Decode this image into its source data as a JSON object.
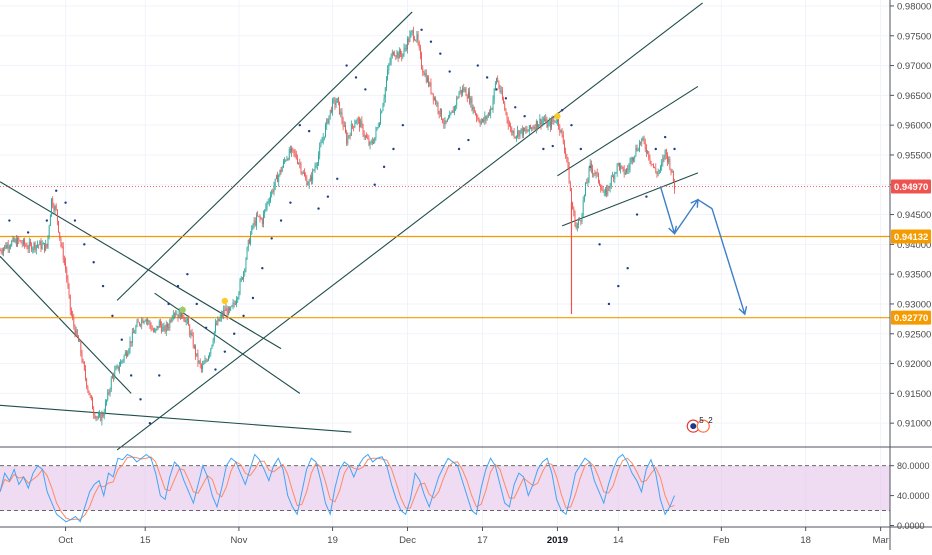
{
  "chart_data": {
    "type": "candlestick",
    "main_pane": {
      "y_axis": {
        "range": [
          0.906,
          0.981
        ],
        "ticks": [
          "0.98000",
          "0.97500",
          "0.97000",
          "0.96500",
          "0.96000",
          "0.95500",
          "0.95000",
          "0.94500",
          "0.94000",
          "0.93500",
          "0.93000",
          "0.92500",
          "0.92000",
          "0.91500",
          "0.91000"
        ]
      },
      "price_tags": [
        {
          "label": "0.94970",
          "value": 0.9497,
          "color": "#ef5350",
          "kind": "current-price"
        },
        {
          "label": "0.94132",
          "value": 0.94132,
          "color": "#f59b00",
          "kind": "horizontal-level"
        },
        {
          "label": "0.92770",
          "value": 0.9277,
          "color": "#f59b00",
          "kind": "horizontal-level"
        }
      ],
      "x_axis": {
        "range": [
          0,
          190
        ],
        "ticks": [
          {
            "label": "Oct",
            "x": 14,
            "bold": false
          },
          {
            "label": "15",
            "x": 31,
            "bold": false
          },
          {
            "label": "Nov",
            "x": 51,
            "bold": false
          },
          {
            "label": "19",
            "x": 71,
            "bold": false
          },
          {
            "label": "Dec",
            "x": 87,
            "bold": false
          },
          {
            "label": "17",
            "x": 103,
            "bold": false
          },
          {
            "label": "2019",
            "x": 119,
            "bold": true
          },
          {
            "label": "14",
            "x": 132,
            "bold": false
          },
          {
            "label": "Feb",
            "x": 154,
            "bold": false
          },
          {
            "label": "18",
            "x": 172,
            "bold": false
          },
          {
            "label": "Mar",
            "x": 188,
            "bold": false
          }
        ]
      },
      "price_path": [
        [
          0,
          0.939
        ],
        [
          2,
          0.9402
        ],
        [
          4,
          0.9405
        ],
        [
          6,
          0.9396
        ],
        [
          8,
          0.94
        ],
        [
          10,
          0.9395
        ],
        [
          11,
          0.9475
        ],
        [
          12,
          0.9455
        ],
        [
          13,
          0.94
        ],
        [
          14,
          0.936
        ],
        [
          15,
          0.929
        ],
        [
          16,
          0.9255
        ],
        [
          17,
          0.923
        ],
        [
          18,
          0.9185
        ],
        [
          19,
          0.915
        ],
        [
          20,
          0.912
        ],
        [
          21,
          0.9106
        ],
        [
          22,
          0.9115
        ],
        [
          23,
          0.9145
        ],
        [
          24,
          0.918
        ],
        [
          25,
          0.919
        ],
        [
          26,
          0.9205
        ],
        [
          27,
          0.922
        ],
        [
          28,
          0.924
        ],
        [
          29,
          0.926
        ],
        [
          30,
          0.9272
        ],
        [
          31,
          0.9278
        ],
        [
          32,
          0.9265
        ],
        [
          33,
          0.925
        ],
        [
          34,
          0.9268
        ],
        [
          35,
          0.9255
        ],
        [
          36,
          0.9265
        ],
        [
          37,
          0.929
        ],
        [
          38,
          0.9282
        ],
        [
          39,
          0.9284
        ],
        [
          40,
          0.9268
        ],
        [
          41,
          0.924
        ],
        [
          42,
          0.921
        ],
        [
          43,
          0.919
        ],
        [
          44,
          0.9205
        ],
        [
          45,
          0.9228
        ],
        [
          46,
          0.9262
        ],
        [
          47,
          0.9275
        ],
        [
          48,
          0.929
        ],
        [
          49,
          0.9285
        ],
        [
          50,
          0.93
        ],
        [
          51,
          0.9325
        ],
        [
          52,
          0.9355
        ],
        [
          53,
          0.94
        ],
        [
          54,
          0.9432
        ],
        [
          55,
          0.9445
        ],
        [
          56,
          0.944
        ],
        [
          57,
          0.947
        ],
        [
          58,
          0.9488
        ],
        [
          59,
          0.9508
        ],
        [
          60,
          0.9525
        ],
        [
          61,
          0.9545
        ],
        [
          62,
          0.9555
        ],
        [
          63,
          0.955
        ],
        [
          64,
          0.9535
        ],
        [
          65,
          0.9512
        ],
        [
          66,
          0.9502
        ],
        [
          67,
          0.9525
        ],
        [
          68,
          0.955
        ],
        [
          69,
          0.958
        ],
        [
          70,
          0.961
        ],
        [
          71,
          0.9635
        ],
        [
          72,
          0.964
        ],
        [
          73,
          0.961
        ],
        [
          74,
          0.9575
        ],
        [
          75,
          0.9595
        ],
        [
          76,
          0.961
        ],
        [
          77,
          0.96
        ],
        [
          78,
          0.958
        ],
        [
          79,
          0.9565
        ],
        [
          80,
          0.958
        ],
        [
          81,
          0.961
        ],
        [
          82,
          0.965
        ],
        [
          83,
          0.97
        ],
        [
          84,
          0.9725
        ],
        [
          85,
          0.9718
        ],
        [
          86,
          0.972
        ],
        [
          87,
          0.974
        ],
        [
          88,
          0.9755
        ],
        [
          89,
          0.9745
        ],
        [
          90,
          0.97
        ],
        [
          91,
          0.968
        ],
        [
          92,
          0.966
        ],
        [
          93,
          0.964
        ],
        [
          94,
          0.962
        ],
        [
          95,
          0.96
        ],
        [
          96,
          0.961
        ],
        [
          97,
          0.963
        ],
        [
          98,
          0.9655
        ],
        [
          99,
          0.966
        ],
        [
          100,
          0.965
        ],
        [
          101,
          0.9628
        ],
        [
          102,
          0.9612
        ],
        [
          103,
          0.9605
        ],
        [
          104,
          0.9615
        ],
        [
          105,
          0.9632
        ],
        [
          106,
          0.968
        ],
        [
          107,
          0.965
        ],
        [
          108,
          0.962
        ],
        [
          109,
          0.9592
        ],
        [
          110,
          0.9585
        ],
        [
          111,
          0.959
        ],
        [
          112,
          0.9588
        ],
        [
          113,
          0.9592
        ],
        [
          114,
          0.96
        ],
        [
          115,
          0.9605
        ],
        [
          116,
          0.961
        ],
        [
          117,
          0.9598
        ],
        [
          118,
          0.9606
        ],
        [
          119,
          0.9612
        ],
        [
          120,
          0.958
        ],
        [
          121,
          0.9545
        ],
        [
          122,
          0.947
        ],
        [
          123,
          0.9428
        ],
        [
          124,
          0.9445
        ],
        [
          125,
          0.9495
        ],
        [
          126,
          0.953
        ],
        [
          127,
          0.952
        ],
        [
          128,
          0.9505
        ],
        [
          129,
          0.948
        ],
        [
          130,
          0.9498
        ],
        [
          131,
          0.9518
        ],
        [
          132,
          0.9534
        ],
        [
          133,
          0.952
        ],
        [
          134,
          0.9525
        ],
        [
          135,
          0.9548
        ],
        [
          136,
          0.9562
        ],
        [
          137,
          0.9575
        ],
        [
          138,
          0.956
        ],
        [
          139,
          0.954
        ],
        [
          140,
          0.952
        ],
        [
          141,
          0.9525
        ],
        [
          142,
          0.9555
        ],
        [
          143,
          0.9535
        ],
        [
          144,
          0.9497
        ]
      ],
      "sar_points": [
        [
          2,
          0.944
        ],
        [
          6,
          0.942
        ],
        [
          10,
          0.944
        ],
        [
          12,
          0.949
        ],
        [
          14,
          0.947
        ],
        [
          16,
          0.944
        ],
        [
          18,
          0.94
        ],
        [
          20,
          0.937
        ],
        [
          22,
          0.933
        ],
        [
          24,
          0.928
        ],
        [
          26,
          0.924
        ],
        [
          28,
          0.918
        ],
        [
          30,
          0.914
        ],
        [
          32,
          0.91
        ],
        [
          34,
          0.918
        ],
        [
          36,
          0.93
        ],
        [
          38,
          0.933
        ],
        [
          40,
          0.935
        ],
        [
          42,
          0.93
        ],
        [
          44,
          0.926
        ],
        [
          46,
          0.919
        ],
        [
          48,
          0.922
        ],
        [
          50,
          0.925
        ],
        [
          52,
          0.928
        ],
        [
          54,
          0.931
        ],
        [
          56,
          0.936
        ],
        [
          58,
          0.941
        ],
        [
          60,
          0.944
        ],
        [
          62,
          0.947
        ],
        [
          64,
          0.96
        ],
        [
          66,
          0.959
        ],
        [
          68,
          0.946
        ],
        [
          70,
          0.948
        ],
        [
          72,
          0.951
        ],
        [
          74,
          0.97
        ],
        [
          76,
          0.968
        ],
        [
          78,
          0.966
        ],
        [
          80,
          0.95
        ],
        [
          82,
          0.953
        ],
        [
          84,
          0.956
        ],
        [
          86,
          0.96
        ],
        [
          90,
          0.976
        ],
        [
          92,
          0.974
        ],
        [
          94,
          0.972
        ],
        [
          96,
          0.969
        ],
        [
          98,
          0.956
        ],
        [
          100,
          0.9575
        ],
        [
          102,
          0.97
        ],
        [
          104,
          0.968
        ],
        [
          106,
          0.966
        ],
        [
          108,
          0.9645
        ],
        [
          110,
          0.963
        ],
        [
          112,
          0.9615
        ],
        [
          116,
          0.956
        ],
        [
          118,
          0.9565
        ],
        [
          120,
          0.9625
        ],
        [
          122,
          0.96
        ],
        [
          124,
          0.956
        ],
        [
          126,
          0.953
        ],
        [
          128,
          0.94
        ],
        [
          130,
          0.93
        ],
        [
          132,
          0.933
        ],
        [
          134,
          0.936
        ],
        [
          136,
          0.945
        ],
        [
          138,
          0.948
        ],
        [
          140,
          0.956
        ],
        [
          142,
          0.958
        ],
        [
          144,
          0.956
        ]
      ],
      "spike": {
        "x": 122,
        "low": 0.9283
      },
      "trendlines": [
        {
          "from": [
            0,
            0.9505
          ],
          "to": [
            60,
            0.9225
          ]
        },
        {
          "from": [
            0,
            0.938
          ],
          "to": [
            28,
            0.915
          ]
        },
        {
          "from": [
            0,
            0.913
          ],
          "to": [
            75,
            0.9085
          ]
        },
        {
          "from": [
            25,
            0.9055
          ],
          "to": [
            150,
            0.9805
          ]
        },
        {
          "from": [
            25,
            0.9306
          ],
          "to": [
            88,
            0.979
          ]
        },
        {
          "from": [
            33,
            0.9318
          ],
          "to": [
            64,
            0.915
          ]
        },
        {
          "from": [
            119,
            0.9515
          ],
          "to": [
            149,
            0.9665
          ]
        },
        {
          "from": [
            120,
            0.9431
          ],
          "to": [
            149,
            0.952
          ]
        }
      ],
      "projection": [
        [
          141,
          0.9497
        ],
        [
          144,
          0.9418
        ],
        [
          149,
          0.9475
        ],
        [
          152,
          0.946
        ],
        [
          159,
          0.9283
        ]
      ],
      "markers": [
        {
          "x": 39,
          "value": 0.929,
          "color": "#9ccc65"
        },
        {
          "x": 48,
          "value": 0.9305,
          "color": "#ffca28"
        },
        {
          "x": 119,
          "value": 0.9615,
          "color": "#ffca28"
        }
      ],
      "event_badge": {
        "x": 148,
        "value": 0.9095,
        "count_a": "5",
        "count_b": "2"
      }
    },
    "indicator_pane": {
      "type": "stochastic-rsi",
      "y_axis": {
        "range": [
          -2,
          105
        ],
        "ticks": [
          "80.0000",
          "40.0000",
          "0.0000"
        ]
      },
      "band": [
        20,
        80
      ],
      "k_values": [
        45,
        70,
        60,
        75,
        55,
        65,
        50,
        70,
        80,
        75,
        45,
        30,
        15,
        10,
        5,
        8,
        12,
        5,
        25,
        45,
        55,
        60,
        40,
        70,
        65,
        90,
        88,
        95,
        92,
        85,
        90,
        95,
        90,
        70,
        40,
        35,
        65,
        85,
        78,
        60,
        45,
        30,
        55,
        80,
        65,
        40,
        25,
        50,
        80,
        90,
        85,
        70,
        55,
        75,
        95,
        88,
        75,
        60,
        80,
        90,
        75,
        40,
        25,
        15,
        45,
        75,
        90,
        85,
        60,
        30,
        15,
        50,
        75,
        85,
        80,
        65,
        80,
        90,
        95,
        85,
        90,
        92,
        80,
        55,
        35,
        20,
        15,
        35,
        70,
        60,
        40,
        25,
        45,
        65,
        78,
        90,
        85,
        80,
        60,
        40,
        20,
        15,
        50,
        75,
        90,
        80,
        55,
        30,
        25,
        55,
        70,
        65,
        40,
        55,
        75,
        85,
        90,
        70,
        35,
        20,
        15,
        40,
        70,
        80,
        90,
        85,
        60,
        45,
        30,
        55,
        75,
        90,
        95,
        85,
        70,
        60,
        45,
        75,
        88,
        70,
        35,
        15,
        25,
        40
      ]
    },
    "colors": {
      "up": "#26a69a",
      "down": "#ef5350",
      "trend": "#1f4e4a",
      "projection": "#3d7ec9",
      "sar": "#1f3e8a",
      "level": "#f59b00",
      "band": "#e1bee7"
    }
  }
}
